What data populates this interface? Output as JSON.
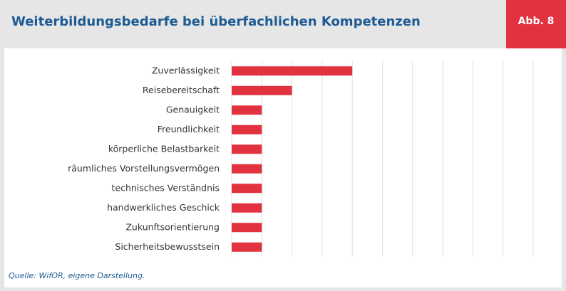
{
  "chart_data": {
    "type": "hbar",
    "title": "Weiterbildungsbedarfe bei überfachlichen Kompetenzen",
    "badge": "Abb. 8",
    "source": "Quelle: WifOR, eigene Darstellung.",
    "categories": [
      "Zuverlässigkeit",
      "Reisebereitschaft",
      "Genauigkeit",
      "Freundlichkeit",
      "körperliche Belastbarkeit",
      "räumliches Vorstellungsvermögen",
      "technisches Verständnis",
      "handwerkliches Geschick",
      "Zukunftsorientierung",
      "Sicherheitsbewusstsein"
    ],
    "values": [
      4,
      2,
      1,
      1,
      1,
      1,
      1,
      1,
      1,
      1
    ],
    "color": "#e2323f",
    "xlim": [
      0,
      10
    ],
    "xticks": [
      0,
      1,
      2,
      3,
      4,
      5,
      6,
      7,
      8,
      9,
      10
    ],
    "grid": true
  }
}
